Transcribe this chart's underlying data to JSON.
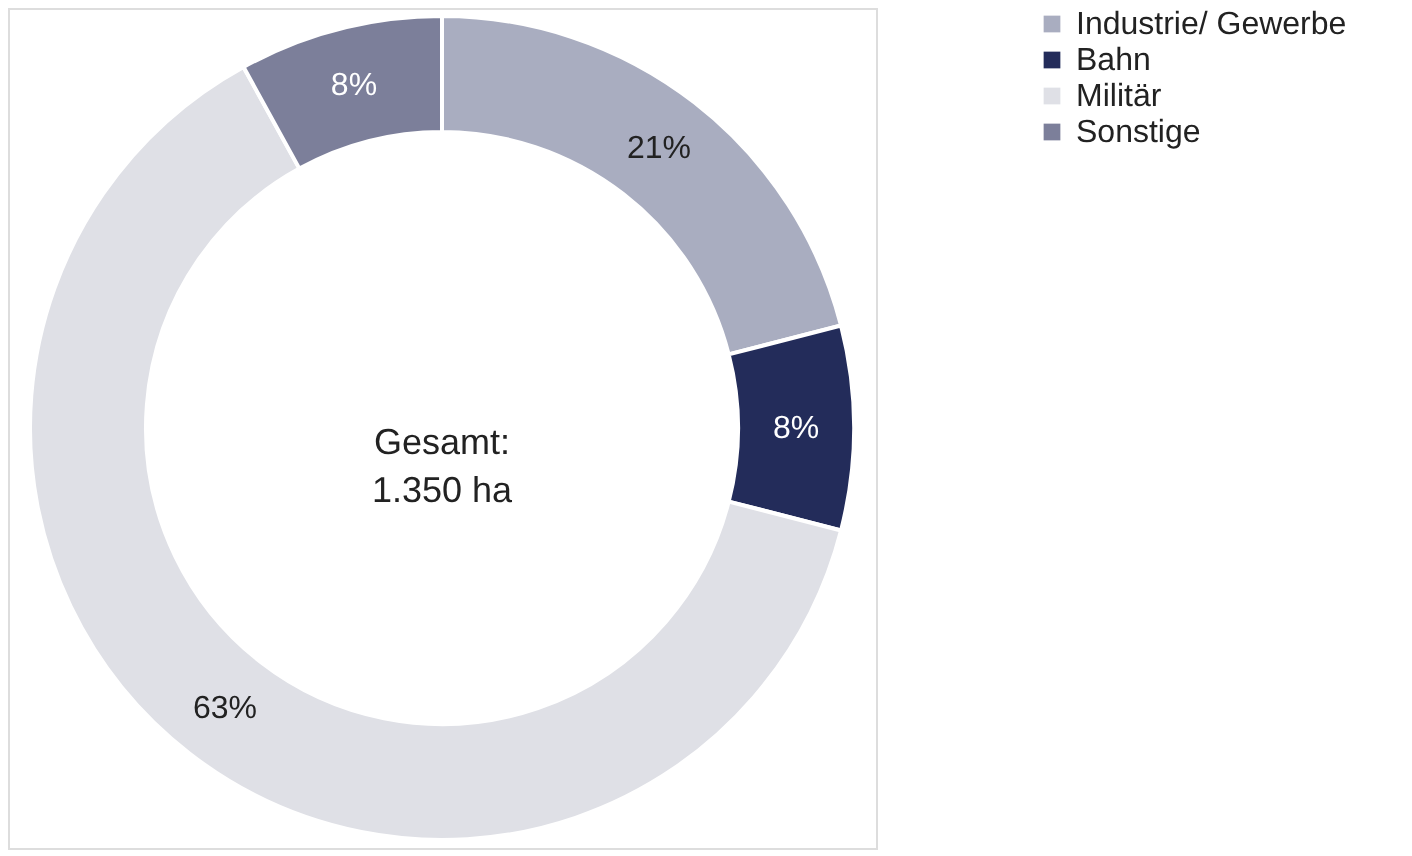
{
  "chart_data": {
    "type": "donut",
    "categories": [
      "Industrie/ Gewerbe",
      "Bahn",
      "Militär",
      "Sonstige"
    ],
    "values": [
      21,
      8,
      63,
      8
    ],
    "colors": [
      "#a9adc0",
      "#232c5a",
      "#dfe0e6",
      "#7c7f9a"
    ],
    "value_labels": [
      "21%",
      "8%",
      "63%",
      "8%"
    ],
    "annotations": [
      "Gesamt:\n1.350 ha"
    ],
    "legend": "right"
  }
}
